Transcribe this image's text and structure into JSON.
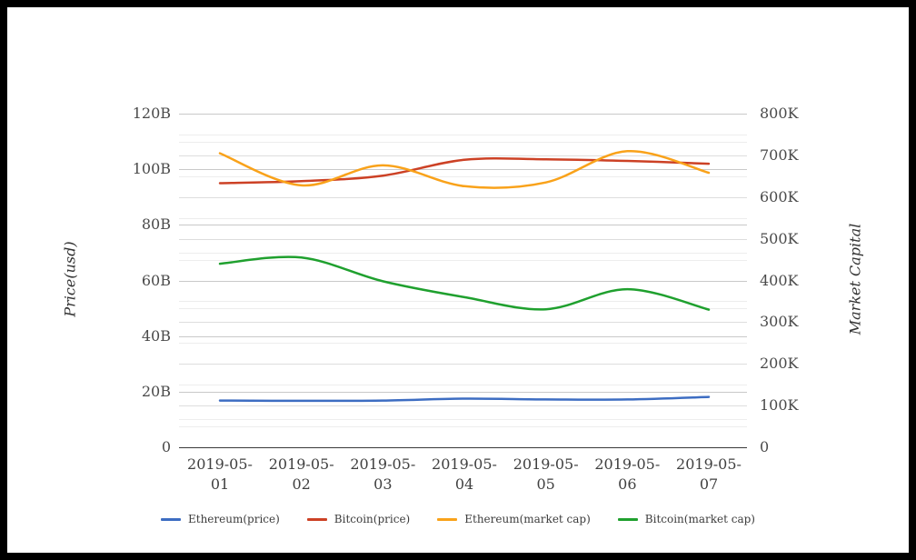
{
  "window": {
    "background": "#ffffff",
    "frame_color": "#000000"
  },
  "chart_data": {
    "type": "line",
    "x_labels": [
      {
        "text": "2019-05-01",
        "lines": [
          "2019-05-",
          "01"
        ]
      },
      {
        "text": "2019-05-02",
        "lines": [
          "2019-05-",
          "02"
        ]
      },
      {
        "text": "2019-05-03",
        "lines": [
          "2019-05-",
          "03"
        ]
      },
      {
        "text": "2019-05-04",
        "lines": [
          "2019-05-",
          "04"
        ]
      },
      {
        "text": "2019-05-05",
        "lines": [
          "2019-05-",
          "05"
        ]
      },
      {
        "text": "2019-05-06",
        "lines": [
          "2019-05-",
          "06"
        ]
      },
      {
        "text": "2019-05-07",
        "lines": [
          "2019-05-",
          "07"
        ]
      }
    ],
    "left_axis": {
      "label": "Price(usd)",
      "min": 0,
      "max": 120,
      "major_step": 20,
      "minor_step": 10,
      "ticks": [
        {
          "v": 0,
          "t": "0"
        },
        {
          "v": 20,
          "t": "20B"
        },
        {
          "v": 40,
          "t": "40B"
        },
        {
          "v": 60,
          "t": "60B"
        },
        {
          "v": 80,
          "t": "80B"
        },
        {
          "v": 100,
          "t": "100B"
        },
        {
          "v": 120,
          "t": "120B"
        }
      ]
    },
    "right_axis": {
      "label": "Market Capital",
      "min": 0,
      "max": 800,
      "major_step": 100,
      "minor_step": 50,
      "ticks": [
        {
          "v": 0,
          "t": "0"
        },
        {
          "v": 100,
          "t": "100K"
        },
        {
          "v": 200,
          "t": "200K"
        },
        {
          "v": 300,
          "t": "300K"
        },
        {
          "v": 400,
          "t": "400K"
        },
        {
          "v": 500,
          "t": "500K"
        },
        {
          "v": 600,
          "t": "600K"
        },
        {
          "v": 700,
          "t": "700K"
        },
        {
          "v": 800,
          "t": "800K"
        }
      ]
    },
    "series": [
      {
        "name": "Ethereum(price)",
        "axis": "left",
        "color": "#3d6dc2",
        "values": [
          16.8,
          16.7,
          16.8,
          17.5,
          17.2,
          17.2,
          18.1
        ]
      },
      {
        "name": "Bitcoin(price)",
        "axis": "left",
        "color": "#cc4125",
        "values": [
          95.0,
          95.7,
          97.7,
          103.4,
          103.6,
          103.0,
          102.0
        ]
      },
      {
        "name": "Ethereum(market cap)",
        "axis": "right",
        "color": "#f9a21a",
        "values": [
          705,
          628,
          676,
          626,
          635,
          710,
          658
        ]
      },
      {
        "name": "Bitcoin(market cap)",
        "axis": "right",
        "color": "#1fa02e",
        "values": [
          440,
          455,
          398,
          360,
          331,
          379,
          330
        ]
      }
    ],
    "legend_position": "bottom",
    "grid": {
      "major_left_color": "#c9c9c9",
      "major_right_color": "#dddddd",
      "minor_color": "#ededed"
    },
    "title": "",
    "subtitle": ""
  }
}
